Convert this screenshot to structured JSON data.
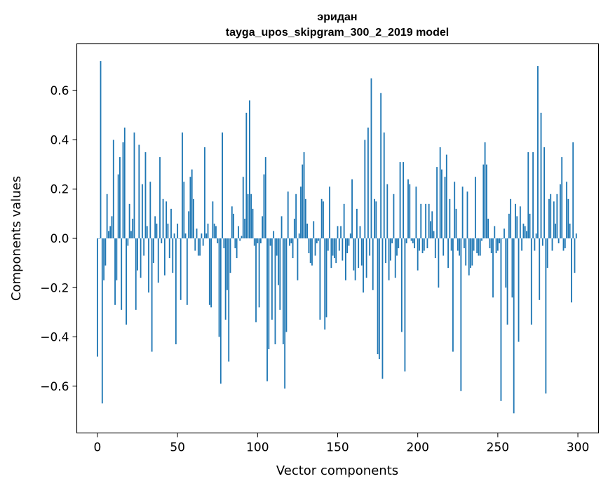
{
  "chart_data": {
    "type": "bar",
    "title": "эридан",
    "subtitle": "tayga_upos_skipgram_300_2_2019 model",
    "xlabel": "Vector components",
    "ylabel": "Components values",
    "xlim": [
      -12.9,
      312.9
    ],
    "ylim": [
      -0.79,
      0.79
    ],
    "xticks": [
      0,
      50,
      100,
      150,
      200,
      250,
      300
    ],
    "yticks": [
      -0.6,
      -0.4,
      -0.2,
      0.0,
      0.2,
      0.4,
      0.6
    ],
    "xtick_labels": [
      "0",
      "50",
      "100",
      "150",
      "200",
      "250",
      "300"
    ],
    "ytick_labels": [
      "−0.6",
      "−0.4",
      "−0.2",
      "0.0",
      "0.2",
      "0.4",
      "0.6"
    ],
    "bar_color": "#1f77b4",
    "values": [
      -0.48,
      0.0,
      0.72,
      -0.67,
      -0.17,
      -0.11,
      0.18,
      0.03,
      0.05,
      0.09,
      0.4,
      -0.27,
      -0.17,
      0.26,
      0.33,
      -0.29,
      0.39,
      0.45,
      -0.35,
      -0.03,
      0.14,
      0.03,
      0.08,
      0.43,
      -0.29,
      -0.13,
      0.38,
      -0.16,
      0.22,
      -0.07,
      0.35,
      0.05,
      -0.22,
      0.23,
      -0.46,
      -0.1,
      0.09,
      0.06,
      -0.18,
      0.33,
      -0.02,
      0.16,
      -0.15,
      0.15,
      0.06,
      -0.08,
      0.12,
      -0.14,
      0.02,
      -0.43,
      0.06,
      0.0,
      -0.25,
      0.43,
      0.23,
      0.02,
      -0.27,
      0.11,
      0.25,
      0.28,
      0.16,
      -0.05,
      0.04,
      -0.07,
      -0.07,
      0.02,
      -0.03,
      0.37,
      0.02,
      0.06,
      -0.27,
      -0.28,
      0.15,
      0.06,
      0.05,
      -0.02,
      -0.4,
      -0.59,
      0.43,
      -0.04,
      -0.33,
      -0.21,
      -0.5,
      -0.14,
      0.13,
      0.1,
      -0.04,
      -0.08,
      0.05,
      -0.01,
      0.01,
      0.25,
      0.08,
      0.51,
      0.18,
      0.56,
      0.18,
      0.12,
      -0.03,
      -0.34,
      -0.02,
      -0.28,
      -0.02,
      0.09,
      0.26,
      0.33,
      -0.58,
      -0.45,
      -0.03,
      -0.33,
      0.03,
      -0.43,
      -0.07,
      -0.19,
      -0.29,
      0.09,
      -0.43,
      -0.61,
      -0.38,
      0.19,
      -0.03,
      -0.02,
      -0.08,
      0.08,
      0.18,
      -0.17,
      0.02,
      0.21,
      0.3,
      0.35,
      0.16,
      0.06,
      -0.06,
      -0.1,
      -0.11,
      0.07,
      -0.07,
      -0.02,
      -0.01,
      -0.33,
      0.16,
      0.15,
      -0.37,
      -0.32,
      -0.05,
      0.21,
      -0.12,
      -0.07,
      -0.08,
      -0.1,
      0.05,
      -0.05,
      0.05,
      -0.09,
      0.14,
      -0.17,
      -0.06,
      -0.03,
      0.02,
      0.24,
      -0.13,
      -0.17,
      0.12,
      -0.12,
      0.05,
      -0.11,
      -0.22,
      0.4,
      -0.16,
      0.45,
      -0.07,
      0.65,
      -0.21,
      0.16,
      0.15,
      -0.47,
      -0.49,
      0.59,
      -0.57,
      0.43,
      -0.1,
      0.22,
      -0.17,
      -0.09,
      -0.02,
      0.18,
      -0.16,
      -0.07,
      -0.04,
      0.31,
      -0.38,
      0.31,
      -0.54,
      -0.02,
      0.24,
      0.22,
      -0.01,
      -0.02,
      -0.04,
      0.21,
      -0.13,
      -0.05,
      0.14,
      -0.06,
      -0.05,
      0.14,
      -0.04,
      0.14,
      0.07,
      0.11,
      0.03,
      -0.08,
      0.29,
      -0.2,
      0.37,
      0.28,
      -0.07,
      0.25,
      0.34,
      -0.12,
      0.16,
      -0.05,
      -0.46,
      0.23,
      0.12,
      -0.05,
      -0.07,
      -0.62,
      0.21,
      -0.04,
      -0.11,
      0.19,
      -0.15,
      -0.12,
      -0.11,
      -0.05,
      0.25,
      -0.06,
      -0.07,
      -0.07,
      -0.01,
      0.3,
      0.39,
      0.3,
      0.08,
      -0.04,
      -0.06,
      -0.24,
      0.05,
      -0.06,
      -0.05,
      -0.02,
      -0.66,
      0.0,
      0.04,
      -0.2,
      -0.35,
      0.1,
      0.16,
      -0.24,
      -0.71,
      0.14,
      0.09,
      -0.42,
      0.13,
      -0.05,
      0.06,
      0.05,
      0.03,
      0.35,
      0.1,
      -0.35,
      0.35,
      -0.05,
      0.02,
      0.7,
      -0.25,
      0.51,
      -0.03,
      0.37,
      -0.63,
      -0.12,
      0.16,
      0.18,
      -0.05,
      0.15,
      0.06,
      0.18,
      -0.02,
      0.22,
      0.33,
      -0.05,
      -0.04,
      0.23,
      0.16,
      0.06,
      -0.26,
      0.39,
      -0.14,
      0.02
    ]
  }
}
